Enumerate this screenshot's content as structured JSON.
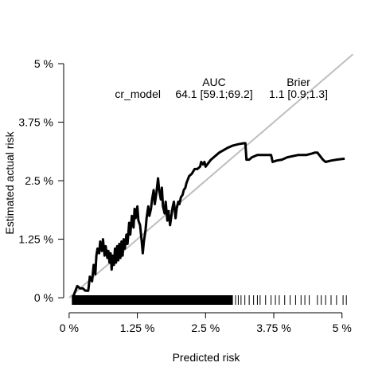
{
  "chart_data": {
    "type": "line",
    "title": "",
    "xlabel": "Predicted risk",
    "ylabel": "Estimated actual risk",
    "xlim": [
      -0.1,
      5.15
    ],
    "ylim": [
      -0.1,
      5.0
    ],
    "x_ticks": [
      0,
      1.25,
      2.5,
      3.75,
      5
    ],
    "x_tick_labels": [
      "0 %",
      "1.25 %",
      "2.5 %",
      "3.75 %",
      "5 %"
    ],
    "y_ticks": [
      0,
      1.25,
      2.5,
      3.75,
      5
    ],
    "y_tick_labels": [
      "0 %",
      "1.25 %",
      "2.5 %",
      "3.75 %",
      "5 %"
    ],
    "grid": false,
    "reference_line": {
      "from": [
        0,
        0
      ],
      "to": [
        5.2,
        5.2
      ],
      "color": "#bebebe"
    },
    "legend_table": {
      "headers": [
        "AUC",
        "Brier"
      ],
      "rows": [
        {
          "model": "cr_model",
          "auc": "64.1 [59.1;69.2]",
          "brier": "1.1 [0.9;1.3]"
        }
      ]
    },
    "series": [
      {
        "name": "cr_model",
        "color": "#000000",
        "points": [
          [
            0.05,
            0.0
          ],
          [
            0.07,
            0.0
          ],
          [
            0.1,
            0.1
          ],
          [
            0.15,
            0.25
          ],
          [
            0.2,
            0.2
          ],
          [
            0.25,
            0.2
          ],
          [
            0.3,
            0.15
          ],
          [
            0.35,
            0.15
          ],
          [
            0.38,
            0.45
          ],
          [
            0.42,
            0.35
          ],
          [
            0.45,
            0.7
          ],
          [
            0.48,
            0.5
          ],
          [
            0.5,
            0.9
          ],
          [
            0.52,
            1.05
          ],
          [
            0.55,
            0.95
          ],
          [
            0.57,
            1.2
          ],
          [
            0.6,
            1.0
          ],
          [
            0.62,
            1.25
          ],
          [
            0.65,
            0.9
          ],
          [
            0.67,
            1.1
          ],
          [
            0.7,
            0.85
          ],
          [
            0.72,
            1.0
          ],
          [
            0.74,
            0.75
          ],
          [
            0.76,
            0.95
          ],
          [
            0.78,
            0.6
          ],
          [
            0.8,
            0.9
          ],
          [
            0.82,
            0.7
          ],
          [
            0.84,
            1.05
          ],
          [
            0.86,
            0.75
          ],
          [
            0.88,
            1.1
          ],
          [
            0.9,
            0.8
          ],
          [
            0.92,
            1.15
          ],
          [
            0.94,
            0.85
          ],
          [
            0.96,
            1.2
          ],
          [
            0.98,
            0.9
          ],
          [
            1.0,
            1.25
          ],
          [
            1.02,
            1.05
          ],
          [
            1.05,
            1.35
          ],
          [
            1.07,
            1.15
          ],
          [
            1.1,
            1.6
          ],
          [
            1.12,
            1.35
          ],
          [
            1.15,
            1.75
          ],
          [
            1.18,
            1.5
          ],
          [
            1.2,
            1.9
          ],
          [
            1.22,
            1.7
          ],
          [
            1.25,
            1.95
          ],
          [
            1.27,
            1.65
          ],
          [
            1.3,
            1.55
          ],
          [
            1.33,
            1.2
          ],
          [
            1.35,
            0.95
          ],
          [
            1.37,
            1.2
          ],
          [
            1.4,
            1.45
          ],
          [
            1.42,
            1.7
          ],
          [
            1.45,
            1.95
          ],
          [
            1.47,
            1.75
          ],
          [
            1.5,
            1.9
          ],
          [
            1.52,
            2.1
          ],
          [
            1.55,
            2.3
          ],
          [
            1.57,
            2.0
          ],
          [
            1.6,
            2.25
          ],
          [
            1.63,
            2.55
          ],
          [
            1.65,
            2.3
          ],
          [
            1.68,
            2.1
          ],
          [
            1.7,
            2.35
          ],
          [
            1.72,
            1.95
          ],
          [
            1.75,
            1.8
          ],
          [
            1.77,
            2.05
          ],
          [
            1.8,
            1.65
          ],
          [
            1.82,
            1.85
          ],
          [
            1.85,
            1.55
          ],
          [
            1.88,
            1.8
          ],
          [
            1.9,
            1.95
          ],
          [
            1.92,
            2.05
          ],
          [
            1.95,
            1.7
          ],
          [
            1.97,
            1.9
          ],
          [
            2.0,
            2.05
          ],
          [
            2.02,
            2.0
          ],
          [
            2.05,
            2.15
          ],
          [
            2.08,
            2.2
          ],
          [
            2.1,
            2.3
          ],
          [
            2.13,
            2.35
          ],
          [
            2.15,
            2.45
          ],
          [
            2.2,
            2.6
          ],
          [
            2.25,
            2.65
          ],
          [
            2.3,
            2.75
          ],
          [
            2.35,
            2.75
          ],
          [
            2.4,
            2.8
          ],
          [
            2.42,
            2.9
          ],
          [
            2.45,
            2.85
          ],
          [
            2.48,
            2.9
          ],
          [
            2.5,
            2.8
          ],
          [
            2.6,
            2.95
          ],
          [
            2.75,
            3.1
          ],
          [
            2.9,
            3.2
          ],
          [
            3.0,
            3.25
          ],
          [
            3.1,
            3.28
          ],
          [
            3.2,
            3.3
          ],
          [
            3.23,
            3.3
          ],
          [
            3.25,
            2.95
          ],
          [
            3.3,
            2.95
          ],
          [
            3.35,
            3.0
          ],
          [
            3.45,
            3.05
          ],
          [
            3.6,
            3.05
          ],
          [
            3.7,
            3.05
          ],
          [
            3.73,
            2.9
          ],
          [
            3.8,
            2.93
          ],
          [
            3.9,
            2.95
          ],
          [
            4.0,
            3.0
          ],
          [
            4.2,
            3.05
          ],
          [
            4.35,
            3.05
          ],
          [
            4.45,
            3.08
          ],
          [
            4.5,
            3.1
          ],
          [
            4.55,
            3.1
          ],
          [
            4.65,
            2.95
          ],
          [
            4.7,
            2.9
          ],
          [
            4.8,
            2.93
          ],
          [
            4.9,
            2.95
          ],
          [
            5.05,
            2.97
          ]
        ]
      }
    ],
    "rug": {
      "description": "tick marks of predicted risk values along x axis",
      "dense_range": [
        0.05,
        3.0
      ],
      "sparse_values": [
        3.05,
        3.1,
        3.15,
        3.22,
        3.3,
        3.38,
        3.45,
        3.5,
        3.6,
        3.7,
        3.78,
        3.85,
        3.95,
        4.05,
        4.15,
        4.25,
        4.32,
        4.4,
        4.55,
        4.62,
        4.7,
        4.8,
        4.9,
        5.02,
        5.08
      ]
    }
  }
}
